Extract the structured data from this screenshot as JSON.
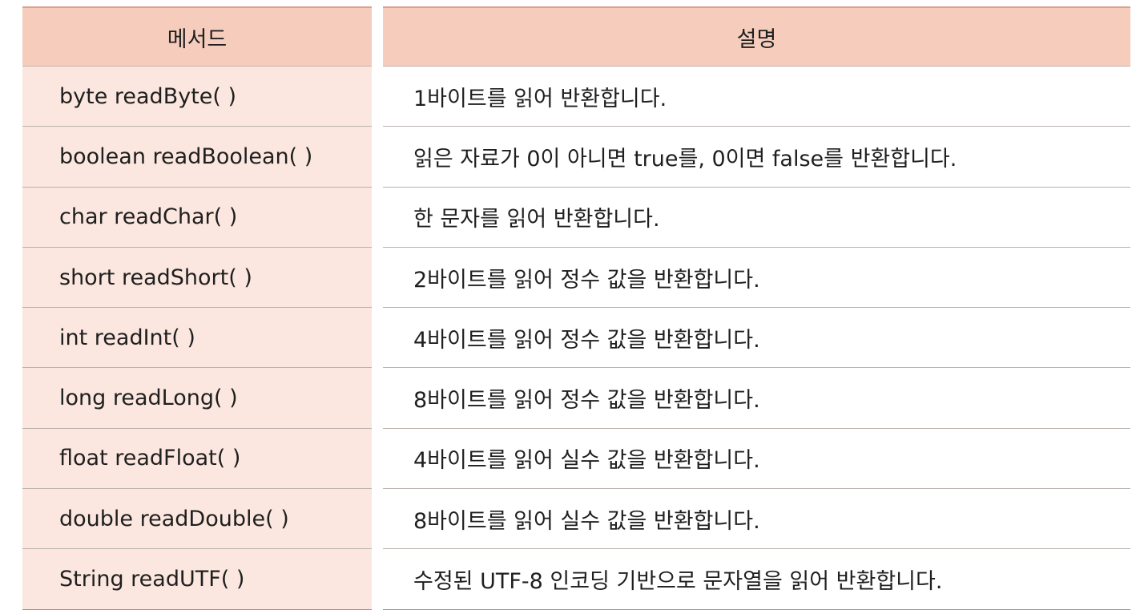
{
  "header": {
    "method": "메서드",
    "description": "설명"
  },
  "rows": [
    {
      "method": "byte readByte( )",
      "description": "1바이트를 읽어 반환합니다."
    },
    {
      "method": "boolean readBoolean( )",
      "description": "읽은 자료가 0이 아니면 true를, 0이면 false를 반환합니다."
    },
    {
      "method": "char readChar( )",
      "description": "한 문자를 읽어 반환합니다."
    },
    {
      "method": "short readShort( )",
      "description": "2바이트를 읽어 정수 값을 반환합니다."
    },
    {
      "method": "int readInt( )",
      "description": "4바이트를 읽어 정수 값을 반환합니다."
    },
    {
      "method": "long readLong( )",
      "description": "8바이트를 읽어 정수 값을 반환합니다."
    },
    {
      "method": "float readFloat( )",
      "description": "4바이트를 읽어 실수 값을 반환합니다."
    },
    {
      "method": "double readDouble( )",
      "description": "8바이트를 읽어 실수 값을 반환합니다."
    },
    {
      "method": "String readUTF( )",
      "description": "수정된 UTF-8 인코딩 기반으로 문자열을 읽어 반환합니다."
    }
  ]
}
